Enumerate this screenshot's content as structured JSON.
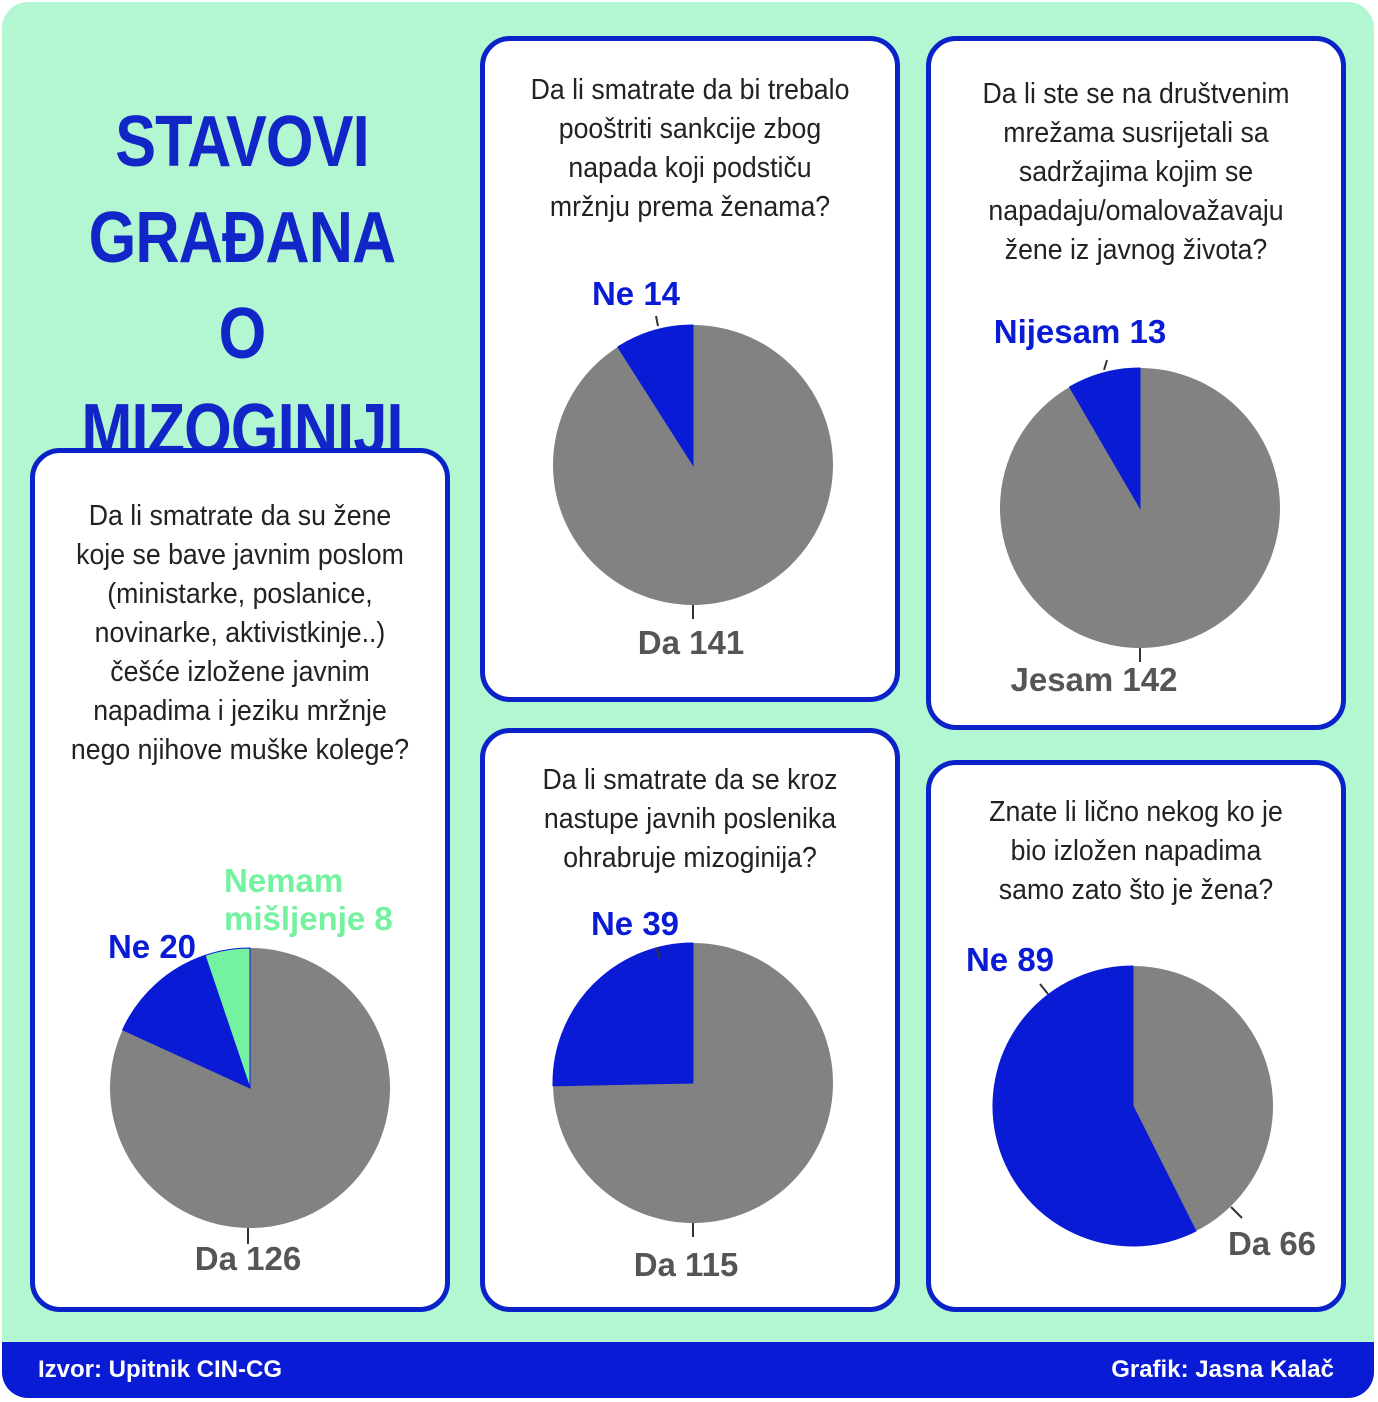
{
  "title_lines": [
    "STAVOVI",
    "GRAĐANA O",
    "MIZOGINIJI"
  ],
  "footer": {
    "source": "Izvor: Upitnik CIN-CG",
    "credit": "Grafik: Jasna Kalač"
  },
  "colors": {
    "blue": "#0a1bd6",
    "gray": "#828282",
    "green": "#74f29f",
    "background": "#b2f7d2"
  },
  "chart_data": [
    {
      "type": "pie",
      "title": "Da li smatrate da su žene koje se bave javnim poslom (ministarke, poslanice, novinarke, aktivistkinje..) češće izložene javnim napadima i jeziku mržnje nego njihove muške kolege?",
      "slices": [
        {
          "label": "Da",
          "value": 126,
          "color": "#828282"
        },
        {
          "label": "Ne",
          "value": 20,
          "color": "#0a1bd6"
        },
        {
          "label": "Nemam mišljenje",
          "value": 8,
          "color": "#74f29f"
        }
      ]
    },
    {
      "type": "pie",
      "title": "Da li smatrate da bi trebalo pooštriti sankcije zbog napada koji podstiču mržnju prema ženama?",
      "slices": [
        {
          "label": "Da",
          "value": 141,
          "color": "#828282"
        },
        {
          "label": "Ne",
          "value": 14,
          "color": "#0a1bd6"
        }
      ]
    },
    {
      "type": "pie",
      "title": "Da li ste se na društvenim mrežama susrijetali sa sadržajima kojim se napadaju/omalovažavaju žene iz javnog života?",
      "slices": [
        {
          "label": "Jesam",
          "value": 142,
          "color": "#828282"
        },
        {
          "label": "Nijesam",
          "value": 13,
          "color": "#0a1bd6"
        }
      ]
    },
    {
      "type": "pie",
      "title": "Da li smatrate da se kroz nastupe javnih poslenika ohrabruje mizoginija?",
      "slices": [
        {
          "label": "Da",
          "value": 115,
          "color": "#828282"
        },
        {
          "label": "Ne",
          "value": 39,
          "color": "#0a1bd6"
        }
      ]
    },
    {
      "type": "pie",
      "title": "Znate li lično nekog ko je bio izložen napadima samo zato što je žena?",
      "slices": [
        {
          "label": "Da",
          "value": 66,
          "color": "#828282"
        },
        {
          "label": "Ne",
          "value": 89,
          "color": "#0a1bd6"
        }
      ]
    }
  ]
}
